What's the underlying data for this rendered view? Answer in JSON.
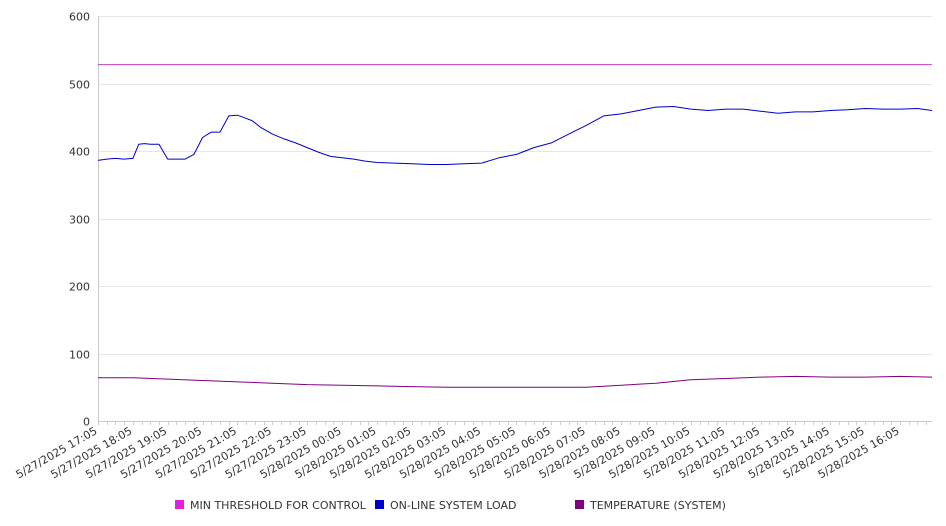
{
  "chart_data": {
    "type": "line",
    "title": "",
    "xlabel": "",
    "ylabel": "",
    "ylim": [
      0,
      600
    ],
    "yticks": [
      0,
      100,
      200,
      300,
      400,
      500,
      600
    ],
    "grid": true,
    "legend_position": "bottom",
    "x_tick_labels": [
      "5/27/2025 17:05",
      "5/27/2025 18:05",
      "5/27/2025 19:05",
      "5/27/2025 20:05",
      "5/27/2025 21:05",
      "5/27/2025 22:05",
      "5/27/2025 23:05",
      "5/28/2025 00:05",
      "5/28/2025 01:05",
      "5/28/2025 02:05",
      "5/28/2025 03:05",
      "5/28/2025 04:05",
      "5/28/2025 05:05",
      "5/28/2025 06:05",
      "5/28/2025 07:05",
      "5/28/2025 08:05",
      "5/28/2025 09:05",
      "5/28/2025 10:05",
      "5/28/2025 11:05",
      "5/28/2025 12:05",
      "5/28/2025 13:05",
      "5/28/2025 14:05",
      "5/28/2025 15:05",
      "5/28/2025 16:05"
    ],
    "x_end": "5/28/2025 17:00",
    "series": [
      {
        "name": "MIN THRESHOLD FOR CONTROL",
        "color": "#e020e0",
        "line_color": "#c040c0",
        "x": [
          "5/27/2025 17:05",
          "5/28/2025 17:00"
        ],
        "values": [
          528,
          528
        ]
      },
      {
        "name": "ON-LINE SYSTEM LOAD",
        "color": "#0000cc",
        "x": [
          "5/27/2025 17:05",
          "5/27/2025 17:20",
          "5/27/2025 17:35",
          "5/27/2025 17:50",
          "5/27/2025 18:05",
          "5/27/2025 18:15",
          "5/27/2025 18:25",
          "5/27/2025 18:35",
          "5/27/2025 18:50",
          "5/27/2025 19:05",
          "5/27/2025 19:15",
          "5/27/2025 19:35",
          "5/27/2025 19:50",
          "5/27/2025 20:05",
          "5/27/2025 20:20",
          "5/27/2025 20:35",
          "5/27/2025 20:50",
          "5/27/2025 21:05",
          "5/27/2025 21:15",
          "5/27/2025 21:30",
          "5/27/2025 21:45",
          "5/27/2025 22:05",
          "5/27/2025 22:25",
          "5/27/2025 22:45",
          "5/27/2025 23:05",
          "5/27/2025 23:25",
          "5/27/2025 23:45",
          "5/28/2025 00:05",
          "5/28/2025 00:25",
          "5/28/2025 00:45",
          "5/28/2025 01:05",
          "5/28/2025 01:35",
          "5/28/2025 02:05",
          "5/28/2025 02:35",
          "5/28/2025 03:05",
          "5/28/2025 03:35",
          "5/28/2025 04:05",
          "5/28/2025 04:35",
          "5/28/2025 05:05",
          "5/28/2025 05:35",
          "5/28/2025 06:05",
          "5/28/2025 06:35",
          "5/28/2025 07:05",
          "5/28/2025 07:35",
          "5/28/2025 08:05",
          "5/28/2025 08:35",
          "5/28/2025 09:05",
          "5/28/2025 09:35",
          "5/28/2025 10:05",
          "5/28/2025 10:35",
          "5/28/2025 11:05",
          "5/28/2025 11:35",
          "5/28/2025 12:05",
          "5/28/2025 12:35",
          "5/28/2025 13:05",
          "5/28/2025 13:35",
          "5/28/2025 14:05",
          "5/28/2025 14:35",
          "5/28/2025 15:05",
          "5/28/2025 15:35",
          "5/28/2025 16:05",
          "5/28/2025 16:35",
          "5/28/2025 17:00"
        ],
        "values": [
          386,
          388,
          389,
          388,
          389,
          410,
          411,
          410,
          410,
          388,
          388,
          388,
          395,
          420,
          428,
          428,
          452,
          453,
          450,
          445,
          435,
          425,
          418,
          412,
          405,
          398,
          392,
          390,
          388,
          385,
          383,
          382,
          381,
          380,
          380,
          381,
          382,
          390,
          395,
          405,
          412,
          425,
          438,
          452,
          455,
          460,
          465,
          466,
          462,
          460,
          462,
          462,
          459,
          456,
          458,
          458,
          460,
          461,
          463,
          462,
          462,
          463,
          460
        ]
      },
      {
        "name": "TEMPERATURE (SYSTEM)",
        "color": "#800080",
        "x": [
          "5/27/2025 17:05",
          "5/27/2025 18:05",
          "5/27/2025 19:05",
          "5/27/2025 20:05",
          "5/27/2025 21:05",
          "5/27/2025 22:05",
          "5/27/2025 23:05",
          "5/28/2025 00:05",
          "5/28/2025 01:05",
          "5/28/2025 02:05",
          "5/28/2025 03:05",
          "5/28/2025 04:05",
          "5/28/2025 05:05",
          "5/28/2025 06:05",
          "5/28/2025 07:05",
          "5/28/2025 08:05",
          "5/28/2025 09:05",
          "5/28/2025 10:05",
          "5/28/2025 11:05",
          "5/28/2025 12:05",
          "5/28/2025 13:05",
          "5/28/2025 14:05",
          "5/28/2025 15:05",
          "5/28/2025 16:05",
          "5/28/2025 17:00"
        ],
        "values": [
          64,
          64,
          62,
          60,
          58,
          56,
          54,
          53,
          52,
          51,
          50,
          50,
          50,
          50,
          50,
          53,
          56,
          61,
          63,
          65,
          66,
          65,
          65,
          66,
          65
        ]
      }
    ]
  }
}
